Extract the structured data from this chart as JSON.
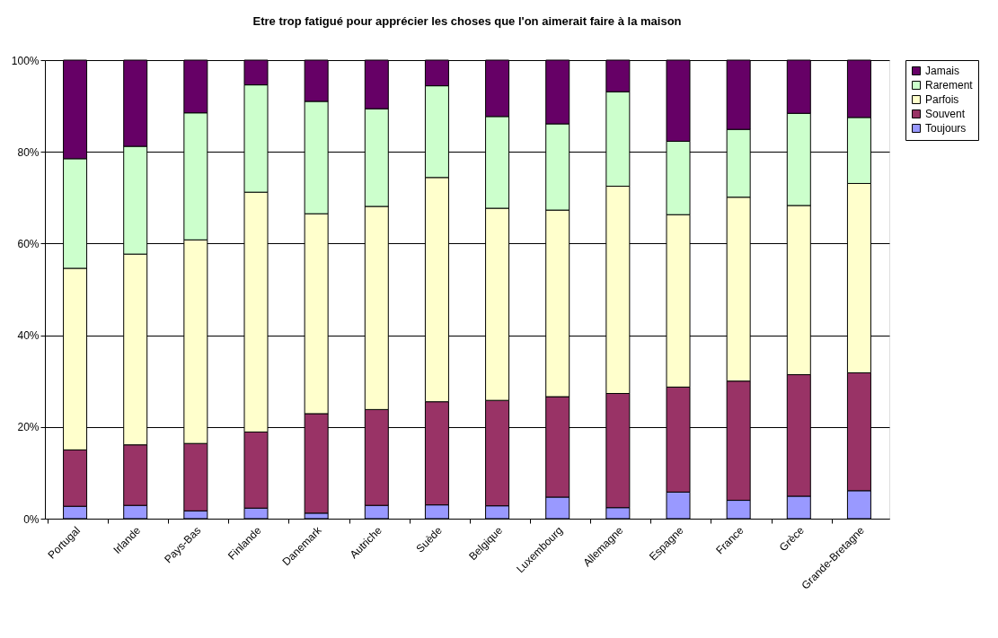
{
  "chart_data": {
    "type": "bar",
    "stacked": true,
    "title": "Etre trop fatigué pour apprécier les choses que l'on aimerait faire à la maison",
    "categories": [
      "Portugal",
      "Irlande",
      "Pays-Bas",
      "Finlande",
      "Danemark",
      "Autriche",
      "Suède",
      "Belgique",
      "Luxembourg",
      "Allemagne",
      "Espagne",
      "France",
      "Grèce",
      "Grande-Bretagne"
    ],
    "series": [
      {
        "name": "Toujours",
        "color": "#9999ff",
        "values": [
          2.7,
          2.9,
          1.7,
          2.3,
          1.2,
          2.9,
          3.0,
          2.8,
          4.7,
          2.4,
          5.8,
          4.0,
          4.9,
          6.1
        ]
      },
      {
        "name": "Souvent",
        "color": "#993366",
        "values": [
          12.3,
          13.2,
          14.7,
          16.6,
          21.7,
          20.9,
          22.5,
          23.0,
          21.9,
          24.9,
          22.9,
          26.0,
          26.5,
          25.7
        ]
      },
      {
        "name": "Parfois",
        "color": "#ffffcc",
        "values": [
          39.6,
          41.6,
          44.4,
          52.3,
          43.6,
          44.3,
          48.9,
          41.9,
          40.7,
          45.2,
          37.6,
          40.1,
          36.9,
          41.3
        ]
      },
      {
        "name": "Rarement",
        "color": "#ccffcc",
        "values": [
          23.9,
          23.5,
          27.7,
          23.4,
          24.5,
          21.3,
          20.0,
          20.0,
          18.8,
          20.6,
          16.0,
          14.8,
          20.1,
          14.4
        ]
      },
      {
        "name": "Jamais",
        "color": "#660066",
        "values": [
          21.5,
          18.8,
          11.5,
          5.4,
          9.0,
          10.6,
          5.6,
          12.3,
          13.9,
          6.9,
          17.7,
          15.1,
          11.6,
          12.5
        ]
      }
    ],
    "ylim": [
      0,
      100
    ],
    "yticks": [
      {
        "value": 0,
        "label": "0%"
      },
      {
        "value": 20,
        "label": "20%"
      },
      {
        "value": 40,
        "label": "40%"
      },
      {
        "value": 60,
        "label": "60%"
      },
      {
        "value": 80,
        "label": "80%"
      },
      {
        "value": 100,
        "label": "100%"
      }
    ],
    "grid": "y",
    "legend": "right"
  }
}
